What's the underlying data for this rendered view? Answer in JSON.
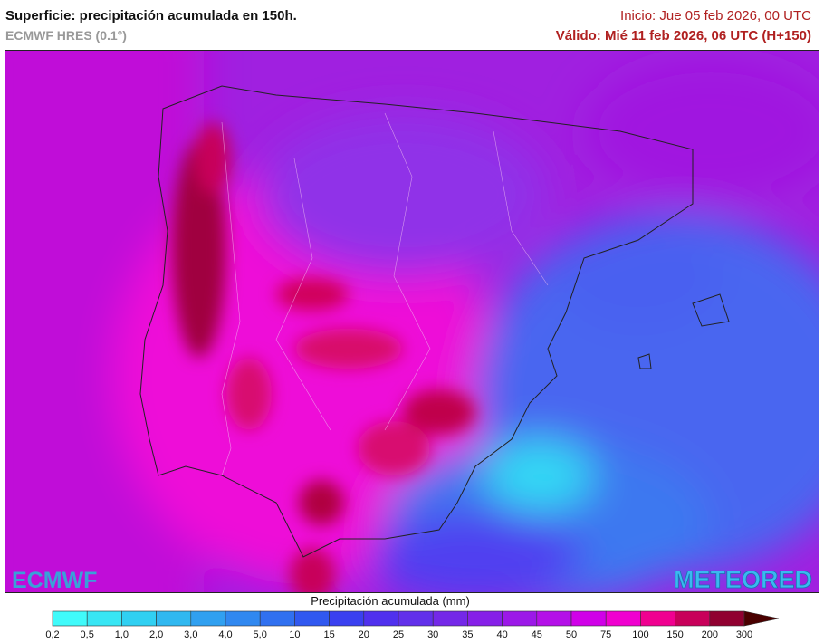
{
  "header": {
    "title": "Superficie: precipitación acumulada en 150h.",
    "subtitle": "ECMWF HRES (0.1°)",
    "init": "Inicio: Jue 05 feb 2026, 00 UTC",
    "valid": "Válido: Mié 11 feb 2026, 06 UTC (H+150)"
  },
  "logos": {
    "left": "ECMWF",
    "right": "METEORED"
  },
  "legend": {
    "title": "Precipitación acumulada (mm)",
    "ticks": [
      "0,2",
      "0,5",
      "1,0",
      "2,0",
      "3,0",
      "4,0",
      "5,0",
      "10",
      "15",
      "20",
      "25",
      "30",
      "35",
      "40",
      "45",
      "50",
      "75",
      "100",
      "150",
      "200",
      "300"
    ],
    "colors": [
      "#40fafa",
      "#38e6f4",
      "#30d0f2",
      "#30b8f0",
      "#30a0f0",
      "#3088f0",
      "#3070f0",
      "#3058f0",
      "#3a40f0",
      "#5030ee",
      "#6230ea",
      "#7428e8",
      "#8620e8",
      "#9c18e8",
      "#b410e8",
      "#d000e8",
      "#f000d0",
      "#f00090",
      "#c8005a",
      "#900030",
      "#4a0000"
    ]
  }
}
